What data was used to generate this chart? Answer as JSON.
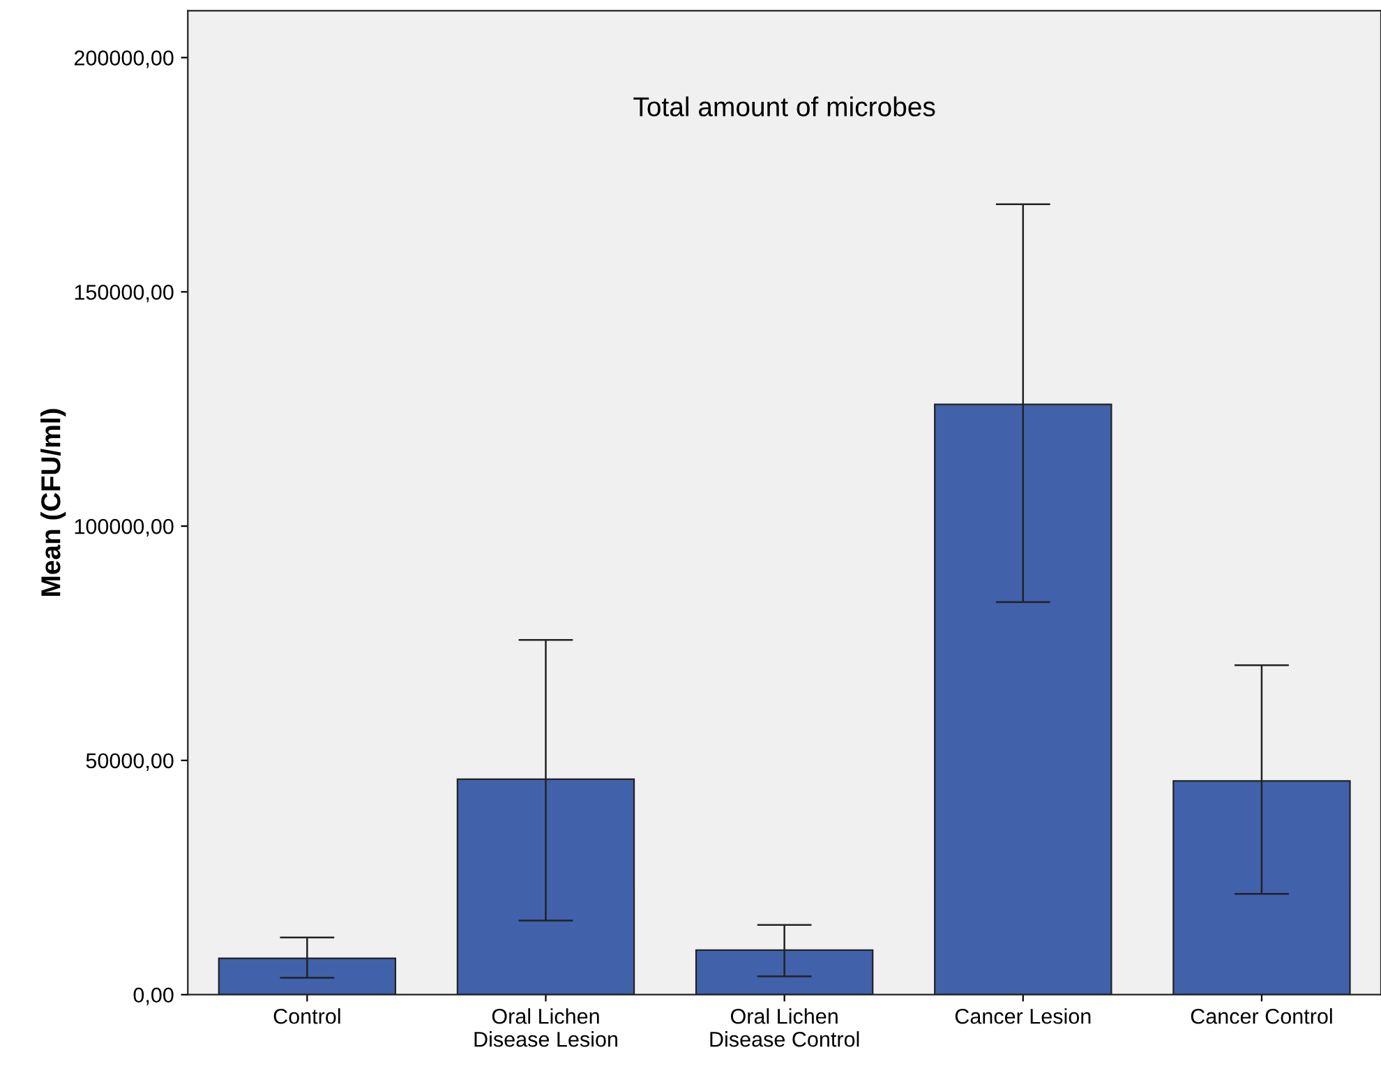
{
  "chart_data": {
    "type": "bar",
    "title": "Total amount of microbes",
    "ylabel": "Mean (CFU/ml)",
    "categories": [
      "Control",
      "Oral Lichen\nDisease Lesion",
      "Oral Lichen\nDisease Control",
      "Cancer Lesion",
      "Cancer Control"
    ],
    "values": [
      7750,
      46000,
      9500,
      126000,
      45600
    ],
    "errors": [
      [
        3600,
        12200
      ],
      [
        15800,
        75700
      ],
      [
        3900,
        14900
      ],
      [
        83800,
        168700
      ],
      [
        21500,
        70300
      ]
    ],
    "color": "#4161aa",
    "ylim": [
      0,
      210000
    ],
    "yticks": [
      {
        "value": 0,
        "label": "0,00"
      },
      {
        "value": 50000,
        "label": "50000,00"
      },
      {
        "value": 100000,
        "label": "100000,00"
      },
      {
        "value": 150000,
        "label": "150000,00"
      },
      {
        "value": 200000,
        "label": "200000,00"
      }
    ],
    "grid": false,
    "legend": false
  }
}
